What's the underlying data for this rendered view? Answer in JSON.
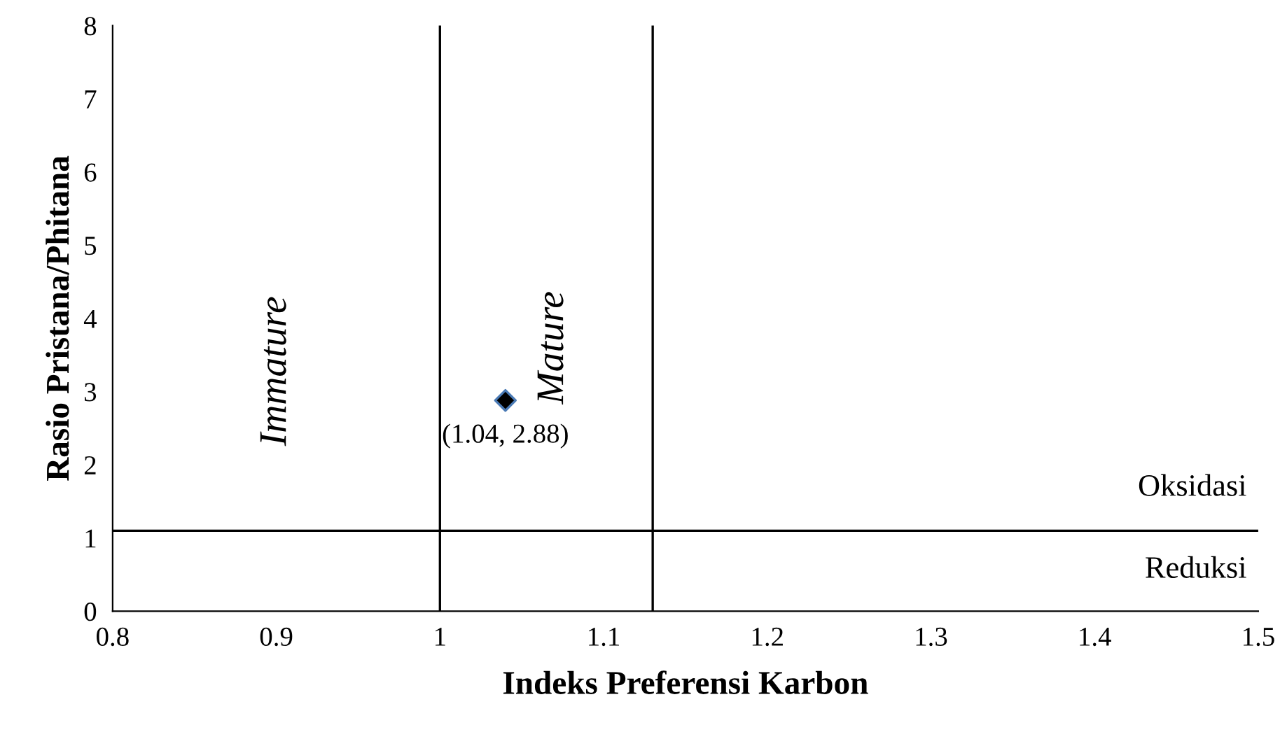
{
  "chart_data": {
    "type": "scatter",
    "xlabel": "Indeks Preferensi Karbon",
    "ylabel": "Rasio Pristana/Phitana",
    "series": [
      {
        "color": "#000000",
        "x": [
          1.04
        ],
        "values": [
          2.88
        ],
        "value_labels": [
          "(1.04, 2.88)"
        ]
      }
    ],
    "marker": "diamond",
    "xlim": [
      0.8,
      1.5
    ],
    "xticks": [
      0.8,
      0.9,
      1,
      1.1,
      1.2,
      1.3,
      1.4,
      1.5
    ],
    "ylim": [
      0,
      8
    ],
    "yticks": [
      0,
      1,
      2,
      3,
      4,
      5,
      6,
      7,
      8
    ],
    "ref_lines": [
      {
        "axis": "x",
        "value": 1,
        "color": "#000000"
      },
      {
        "axis": "x",
        "value": 1.13,
        "color": "#000000"
      },
      {
        "axis": "y",
        "value": 1.1,
        "color": "#000000"
      }
    ],
    "annotations": [
      "Immature",
      "Mature",
      "Oksidasi",
      "Reduksi"
    ],
    "grid": false,
    "legend": false
  }
}
